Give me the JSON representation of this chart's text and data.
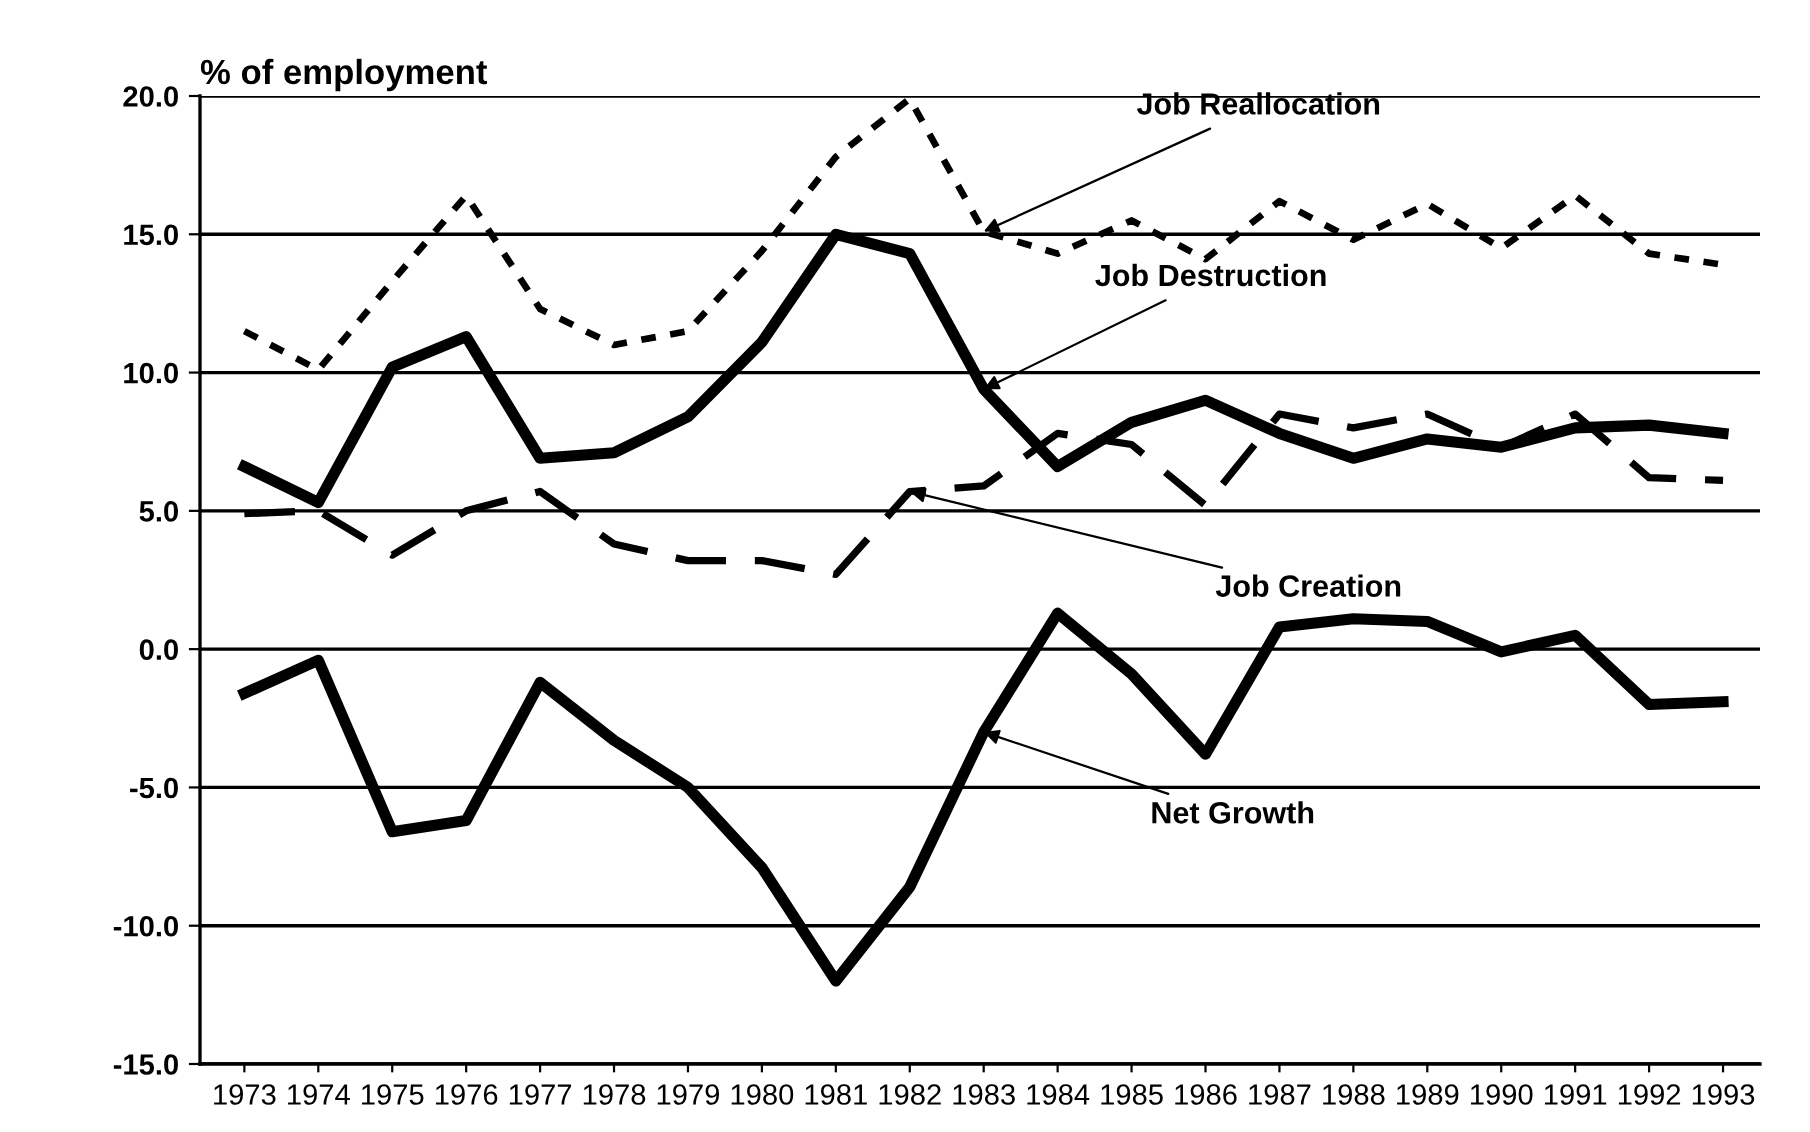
{
  "chart_data": {
    "type": "line",
    "ylabel": "% of employment",
    "categories": [
      "1973",
      "1974",
      "1975",
      "1976",
      "1977",
      "1978",
      "1979",
      "1980",
      "1981",
      "1982",
      "1983",
      "1984",
      "1985",
      "1986",
      "1987",
      "1988",
      "1989",
      "1990",
      "1991",
      "1992",
      "1993"
    ],
    "series": [
      {
        "color": "#000000",
        "line_style": "dotted",
        "values": [
          11.5,
          10.1,
          13.3,
          16.4,
          12.3,
          11.0,
          11.5,
          14.4,
          17.8,
          19.9,
          15.1,
          14.3,
          15.5,
          14.1,
          16.2,
          14.8,
          16.1,
          14.5,
          16.4,
          14.3,
          13.9
        ]
      },
      {
        "color": "#000000",
        "line_style": "solid",
        "values": [
          6.6,
          5.3,
          10.2,
          11.3,
          6.9,
          7.1,
          8.4,
          11.1,
          15.0,
          14.3,
          9.4,
          6.6,
          8.2,
          9.0,
          7.8,
          6.9,
          7.6,
          7.3,
          8.0,
          8.1,
          7.8
        ]
      },
      {
        "color": "#000000",
        "line_style": "dashed",
        "values": [
          4.9,
          5.0,
          3.4,
          5.0,
          5.7,
          3.8,
          3.2,
          3.2,
          2.7,
          5.7,
          5.9,
          7.8,
          7.4,
          5.2,
          8.5,
          8.0,
          8.5,
          7.3,
          8.5,
          6.2,
          6.1
        ]
      },
      {
        "color": "#000000",
        "line_style": "solid",
        "values": [
          -1.6,
          -0.4,
          -6.6,
          -6.2,
          -1.2,
          -3.3,
          -5.0,
          -7.9,
          -12.0,
          -8.6,
          -3.0,
          1.3,
          -0.9,
          -3.8,
          0.8,
          1.1,
          1.0,
          -0.1,
          0.5,
          -2.0,
          -1.9
        ]
      }
    ],
    "annotations": [
      {
        "text": "Job Reallocation",
        "x": "1983",
        "y": 15.1
      },
      {
        "text": "Job Destruction",
        "x": "1983",
        "y": 9.4
      },
      {
        "text": "Job Creation",
        "x": "1982",
        "y": 5.7
      },
      {
        "text": "Net Growth",
        "x": "1983",
        "y": -3.0
      }
    ],
    "ylim": [
      -15.0,
      20.0
    ],
    "yticks": [
      {
        "value": -15,
        "label": "-15.0"
      },
      {
        "value": -10,
        "label": "-10.0"
      },
      {
        "value": -5,
        "label": "-5.0"
      },
      {
        "value": 0,
        "label": "0.0"
      },
      {
        "value": 5,
        "label": "5.0"
      },
      {
        "value": 10,
        "label": "10.0"
      },
      {
        "value": 15,
        "label": "15.0"
      },
      {
        "value": 20,
        "label": "20.0"
      }
    ],
    "grid": "y",
    "marker": "none"
  }
}
